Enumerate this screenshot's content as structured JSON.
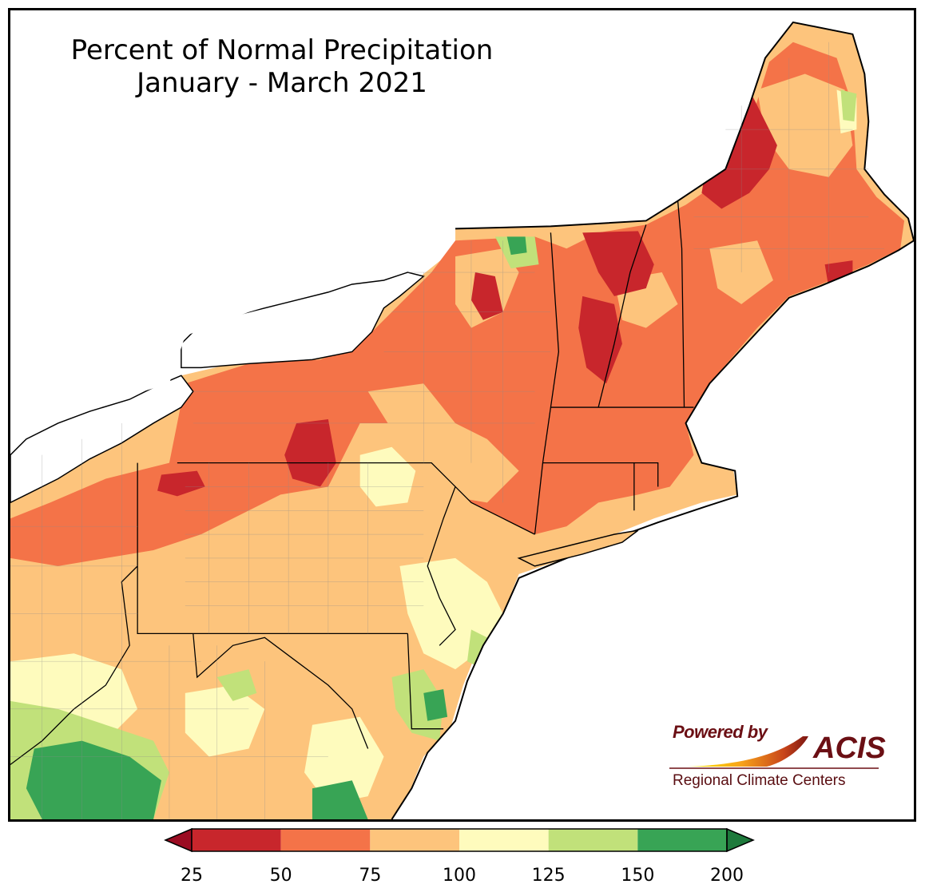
{
  "title": {
    "line1": "Percent of Normal Precipitation",
    "line2": "January - March 2021"
  },
  "logo": {
    "powered_by": "Powered by",
    "brand": "ACIS",
    "subtitle": "Regional Climate Centers",
    "brand_color": "#6b0f14"
  },
  "legend": {
    "bins": [
      {
        "from": 25,
        "to": 50,
        "color": "#c8262c"
      },
      {
        "from": 50,
        "to": 75,
        "color": "#f47348"
      },
      {
        "from": 75,
        "to": 100,
        "color": "#fdc47c"
      },
      {
        "from": 100,
        "to": 125,
        "color": "#fefbbd"
      },
      {
        "from": 125,
        "to": 150,
        "color": "#c1e17a"
      },
      {
        "from": 150,
        "to": 200,
        "color": "#38a455"
      }
    ],
    "low_arrow_color": "#9b0c22",
    "high_arrow_color": "#1e7a3c",
    "ticks": [
      "25",
      "50",
      "75",
      "100",
      "125",
      "150",
      "200"
    ]
  },
  "colors": {
    "very_dry": "#c8262c",
    "dry": "#f47348",
    "moderate": "#fdc47c",
    "near_normal": "#fefbbd",
    "wet": "#c1e17a",
    "very_wet": "#38a455",
    "water": "#ffffff",
    "border": "#000000"
  }
}
